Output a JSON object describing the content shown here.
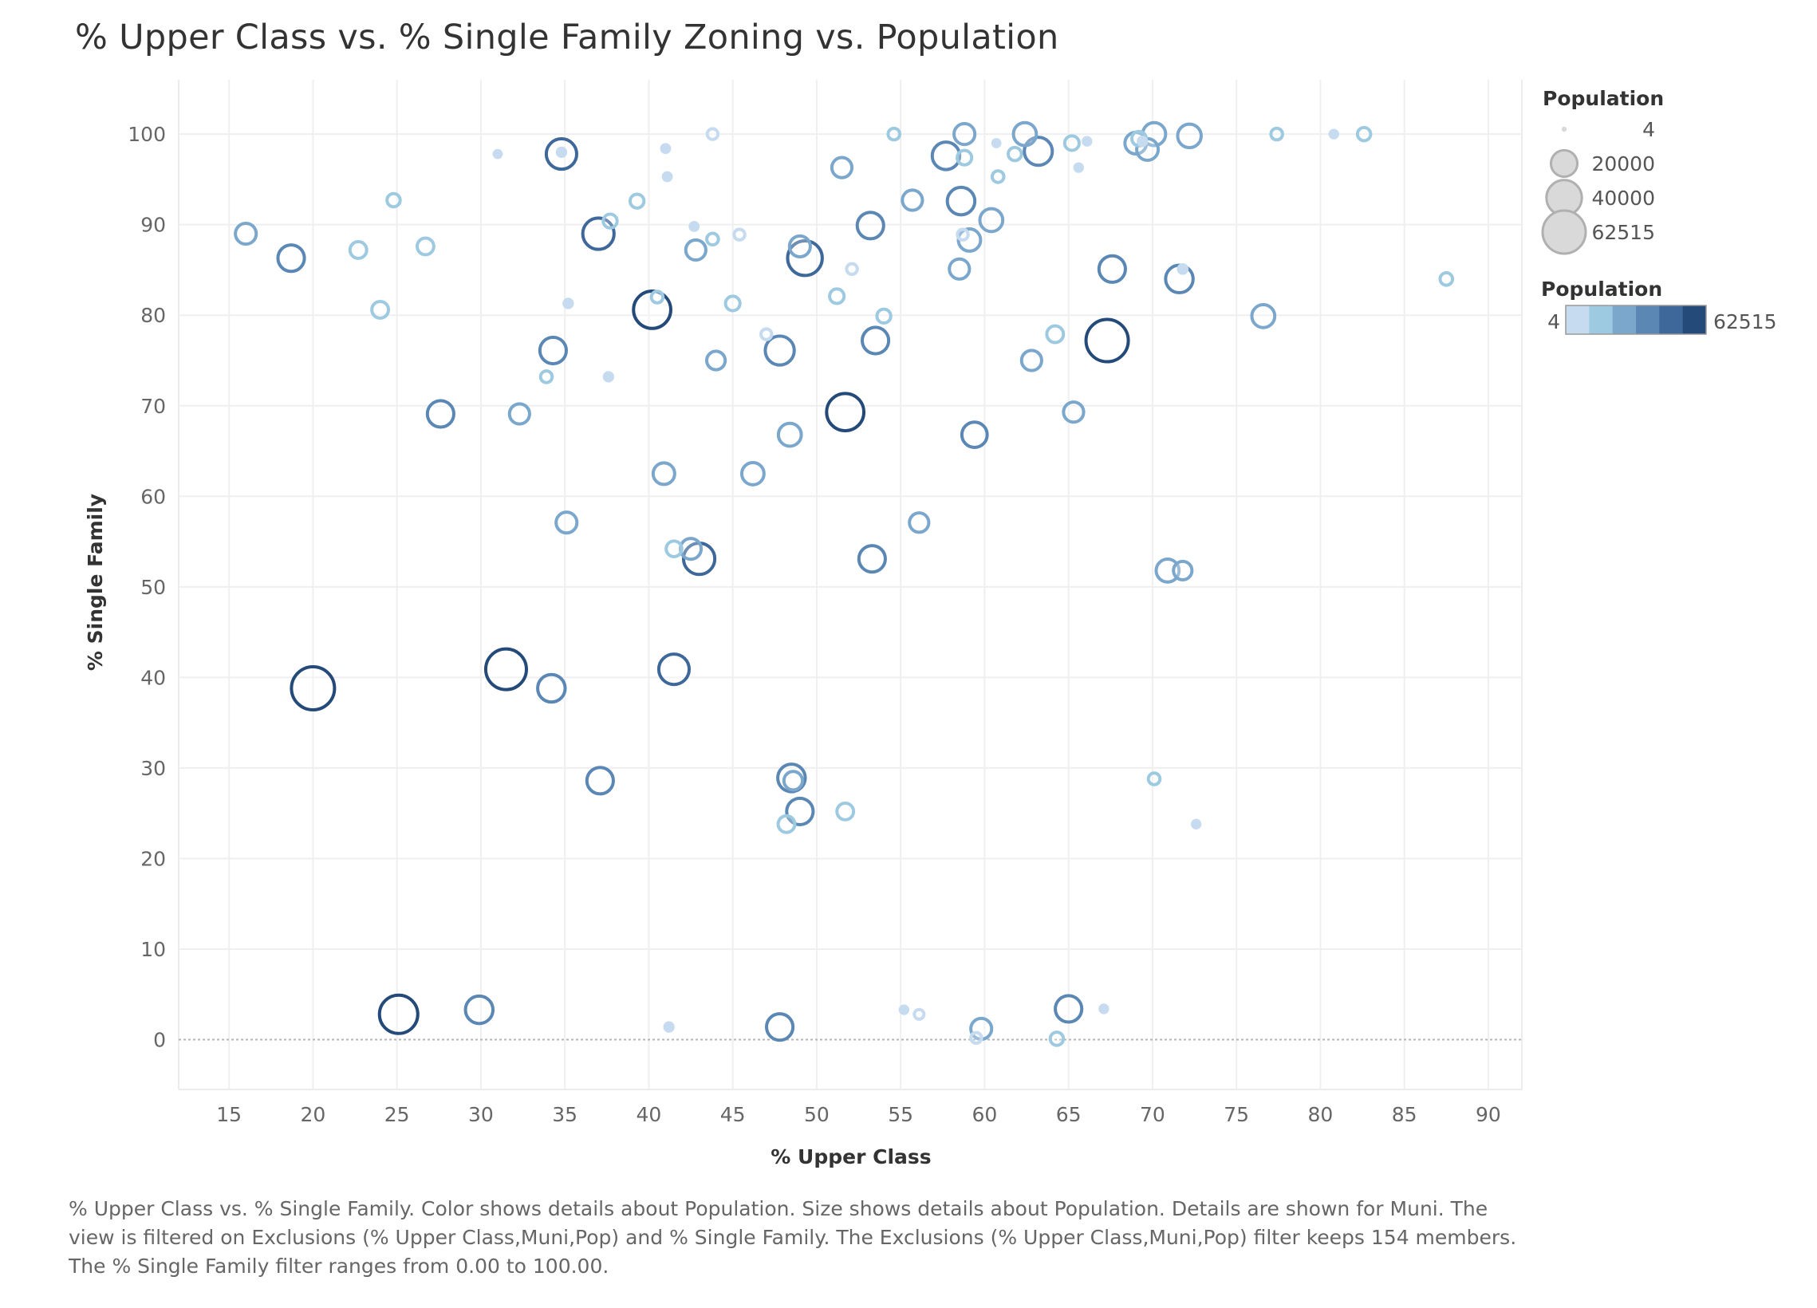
{
  "chart_data": {
    "type": "scatter",
    "title": "% Upper Class vs. % Single Family Zoning vs. Population",
    "xlabel": "% Upper Class",
    "ylabel": "% Single Family",
    "xlim": [
      12,
      92
    ],
    "ylim": [
      -5.5,
      106
    ],
    "x_ticks": [
      15,
      20,
      25,
      30,
      35,
      40,
      45,
      50,
      55,
      60,
      65,
      70,
      75,
      80,
      85,
      90
    ],
    "y_ticks": [
      0,
      10,
      20,
      30,
      40,
      50,
      60,
      70,
      80,
      90,
      100
    ],
    "grid": true,
    "size_legend": {
      "title": "Population",
      "entries": [
        {
          "label": "4",
          "value": 4
        },
        {
          "label": "20000",
          "value": 20000
        },
        {
          "label": "40000",
          "value": 40000
        },
        {
          "label": "62515",
          "value": 62515
        }
      ]
    },
    "color_legend": {
      "title": "Population",
      "min_label": "4",
      "max_label": "62515",
      "colors": [
        "#c6dbef",
        "#9ecae1",
        "#7ba7cc",
        "#5b87b5",
        "#3f689a",
        "#244a7a"
      ]
    },
    "points": [
      {
        "x": 16.0,
        "y": 89,
        "pop": 11000
      },
      {
        "x": 18.7,
        "y": 86.3,
        "pop": 20000
      },
      {
        "x": 22.7,
        "y": 87.2,
        "pop": 6000
      },
      {
        "x": 24.0,
        "y": 80.6,
        "pop": 6000
      },
      {
        "x": 24.8,
        "y": 92.7,
        "pop": 3000
      },
      {
        "x": 26.7,
        "y": 87.6,
        "pop": 6000
      },
      {
        "x": 31.0,
        "y": 97.8,
        "pop": 200
      },
      {
        "x": 34.8,
        "y": 97.8,
        "pop": 28000
      },
      {
        "x": 34.8,
        "y": 98.0,
        "pop": 500
      },
      {
        "x": 39.3,
        "y": 92.6,
        "pop": 3500
      },
      {
        "x": 37.7,
        "y": 90.4,
        "pop": 3500
      },
      {
        "x": 37.0,
        "y": 89,
        "pop": 30000
      },
      {
        "x": 35.2,
        "y": 81.3,
        "pop": 500
      },
      {
        "x": 40.5,
        "y": 82.0,
        "pop": 2000
      },
      {
        "x": 40.2,
        "y": 80.6,
        "pop": 45000
      },
      {
        "x": 34.3,
        "y": 76.1,
        "pop": 20000
      },
      {
        "x": 33.9,
        "y": 73.2,
        "pop": 2000
      },
      {
        "x": 37.6,
        "y": 73.2,
        "pop": 500
      },
      {
        "x": 27.6,
        "y": 69.1,
        "pop": 20000
      },
      {
        "x": 32.3,
        "y": 69.1,
        "pop": 10000
      },
      {
        "x": 41.0,
        "y": 98.4,
        "pop": 400
      },
      {
        "x": 41.1,
        "y": 95.3,
        "pop": 400
      },
      {
        "x": 43.8,
        "y": 100,
        "pop": 1500
      },
      {
        "x": 42.7,
        "y": 89.8,
        "pop": 400
      },
      {
        "x": 43.8,
        "y": 88.4,
        "pop": 2000
      },
      {
        "x": 45.4,
        "y": 88.9,
        "pop": 1500
      },
      {
        "x": 42.8,
        "y": 87.2,
        "pop": 10000
      },
      {
        "x": 45.0,
        "y": 81.3,
        "pop": 4000
      },
      {
        "x": 44.0,
        "y": 75.0,
        "pop": 8000
      },
      {
        "x": 47.0,
        "y": 77.9,
        "pop": 1500
      },
      {
        "x": 47.8,
        "y": 76.1,
        "pop": 25000
      },
      {
        "x": 49.0,
        "y": 87.6,
        "pop": 11000
      },
      {
        "x": 49.3,
        "y": 86.3,
        "pop": 38000
      },
      {
        "x": 51.5,
        "y": 96.3,
        "pop": 10000
      },
      {
        "x": 51.2,
        "y": 82.1,
        "pop": 4000
      },
      {
        "x": 52.1,
        "y": 85.1,
        "pop": 1500
      },
      {
        "x": 53.2,
        "y": 89.9,
        "pop": 20000
      },
      {
        "x": 54.0,
        "y": 79.9,
        "pop": 3500
      },
      {
        "x": 53.5,
        "y": 77.2,
        "pop": 20000
      },
      {
        "x": 54.6,
        "y": 100,
        "pop": 2000
      },
      {
        "x": 55.7,
        "y": 92.7,
        "pop": 10000
      },
      {
        "x": 57.7,
        "y": 97.6,
        "pop": 22000
      },
      {
        "x": 58.8,
        "y": 100,
        "pop": 11000
      },
      {
        "x": 58.8,
        "y": 97.4,
        "pop": 4000
      },
      {
        "x": 60.8,
        "y": 95.3,
        "pop": 2000
      },
      {
        "x": 60.7,
        "y": 99.0,
        "pop": 200
      },
      {
        "x": 61.8,
        "y": 97.8,
        "pop": 3000
      },
      {
        "x": 62.4,
        "y": 100,
        "pop": 14000
      },
      {
        "x": 63.2,
        "y": 98.1,
        "pop": 23000
      },
      {
        "x": 65.2,
        "y": 99.0,
        "pop": 4000
      },
      {
        "x": 65.6,
        "y": 96.3,
        "pop": 300
      },
      {
        "x": 66.1,
        "y": 99.2,
        "pop": 300
      },
      {
        "x": 58.6,
        "y": 92.6,
        "pop": 22000
      },
      {
        "x": 60.4,
        "y": 90.5,
        "pop": 14000
      },
      {
        "x": 58.7,
        "y": 88.9,
        "pop": 1500
      },
      {
        "x": 59.1,
        "y": 88.3,
        "pop": 13000
      },
      {
        "x": 58.5,
        "y": 85.1,
        "pop": 10000
      },
      {
        "x": 64.2,
        "y": 77.9,
        "pop": 6000
      },
      {
        "x": 62.8,
        "y": 75.0,
        "pop": 10000
      },
      {
        "x": 67.6,
        "y": 85.1,
        "pop": 20000
      },
      {
        "x": 67.3,
        "y": 77.2,
        "pop": 60000
      },
      {
        "x": 69.2,
        "y": 99.5,
        "pop": 4000
      },
      {
        "x": 69.4,
        "y": 99.2,
        "pop": 500
      },
      {
        "x": 69.0,
        "y": 99.0,
        "pop": 12000
      },
      {
        "x": 69.7,
        "y": 98.3,
        "pop": 12000
      },
      {
        "x": 70.1,
        "y": 100,
        "pop": 14000
      },
      {
        "x": 72.2,
        "y": 99.8,
        "pop": 15000
      },
      {
        "x": 71.6,
        "y": 84.0,
        "pop": 22000
      },
      {
        "x": 71.8,
        "y": 85.1,
        "pop": 600
      },
      {
        "x": 77.4,
        "y": 100,
        "pop": 2000
      },
      {
        "x": 80.8,
        "y": 100,
        "pop": 300
      },
      {
        "x": 82.6,
        "y": 100,
        "pop": 3000
      },
      {
        "x": 87.5,
        "y": 84.0,
        "pop": 2500
      },
      {
        "x": 76.6,
        "y": 79.9,
        "pop": 14000
      },
      {
        "x": 51.7,
        "y": 69.3,
        "pop": 45000
      },
      {
        "x": 48.4,
        "y": 66.8,
        "pop": 14000
      },
      {
        "x": 59.4,
        "y": 66.8,
        "pop": 18000
      },
      {
        "x": 65.3,
        "y": 69.3,
        "pop": 10000
      },
      {
        "x": 40.9,
        "y": 62.5,
        "pop": 12000
      },
      {
        "x": 46.2,
        "y": 62.5,
        "pop": 13000
      },
      {
        "x": 35.1,
        "y": 57.1,
        "pop": 11000
      },
      {
        "x": 56.1,
        "y": 57.1,
        "pop": 9000
      },
      {
        "x": 41.5,
        "y": 54.2,
        "pop": 5000
      },
      {
        "x": 42.5,
        "y": 54.2,
        "pop": 11000
      },
      {
        "x": 43.0,
        "y": 53.1,
        "pop": 30000
      },
      {
        "x": 53.3,
        "y": 53.1,
        "pop": 20000
      },
      {
        "x": 70.9,
        "y": 51.8,
        "pop": 14000
      },
      {
        "x": 71.8,
        "y": 51.8,
        "pop": 8000
      },
      {
        "x": 20.0,
        "y": 38.8,
        "pop": 62515
      },
      {
        "x": 31.5,
        "y": 40.9,
        "pop": 55000
      },
      {
        "x": 41.5,
        "y": 40.9,
        "pop": 28000
      },
      {
        "x": 34.2,
        "y": 38.8,
        "pop": 22000
      },
      {
        "x": 37.1,
        "y": 28.6,
        "pop": 20000
      },
      {
        "x": 48.5,
        "y": 28.9,
        "pop": 22000
      },
      {
        "x": 48.6,
        "y": 28.6,
        "pop": 8000
      },
      {
        "x": 49.0,
        "y": 25.2,
        "pop": 20000
      },
      {
        "x": 51.7,
        "y": 25.2,
        "pop": 6000
      },
      {
        "x": 48.2,
        "y": 23.8,
        "pop": 6000
      },
      {
        "x": 70.1,
        "y": 28.8,
        "pop": 2000
      },
      {
        "x": 72.6,
        "y": 23.8,
        "pop": 300
      },
      {
        "x": 25.1,
        "y": 2.8,
        "pop": 48000
      },
      {
        "x": 29.9,
        "y": 3.3,
        "pop": 22000
      },
      {
        "x": 41.2,
        "y": 1.4,
        "pop": 500
      },
      {
        "x": 47.8,
        "y": 1.4,
        "pop": 20000
      },
      {
        "x": 55.2,
        "y": 3.3,
        "pop": 300
      },
      {
        "x": 56.1,
        "y": 2.8,
        "pop": 1000
      },
      {
        "x": 59.8,
        "y": 1.2,
        "pop": 11000
      },
      {
        "x": 59.5,
        "y": 0.2,
        "pop": 1500
      },
      {
        "x": 64.3,
        "y": 0.1,
        "pop": 3000
      },
      {
        "x": 65.0,
        "y": 3.4,
        "pop": 20000
      },
      {
        "x": 67.1,
        "y": 3.4,
        "pop": 300
      }
    ]
  },
  "caption": "% Upper Class vs. % Single Family.  Color shows details about Population.  Size shows details about Population.  Details are shown for Muni. The view is filtered on Exclusions (% Upper Class,Muni,Pop) and % Single Family. The Exclusions (% Upper Class,Muni,Pop) filter keeps 154 members. The % Single Family filter ranges from 0.00 to 100.00."
}
